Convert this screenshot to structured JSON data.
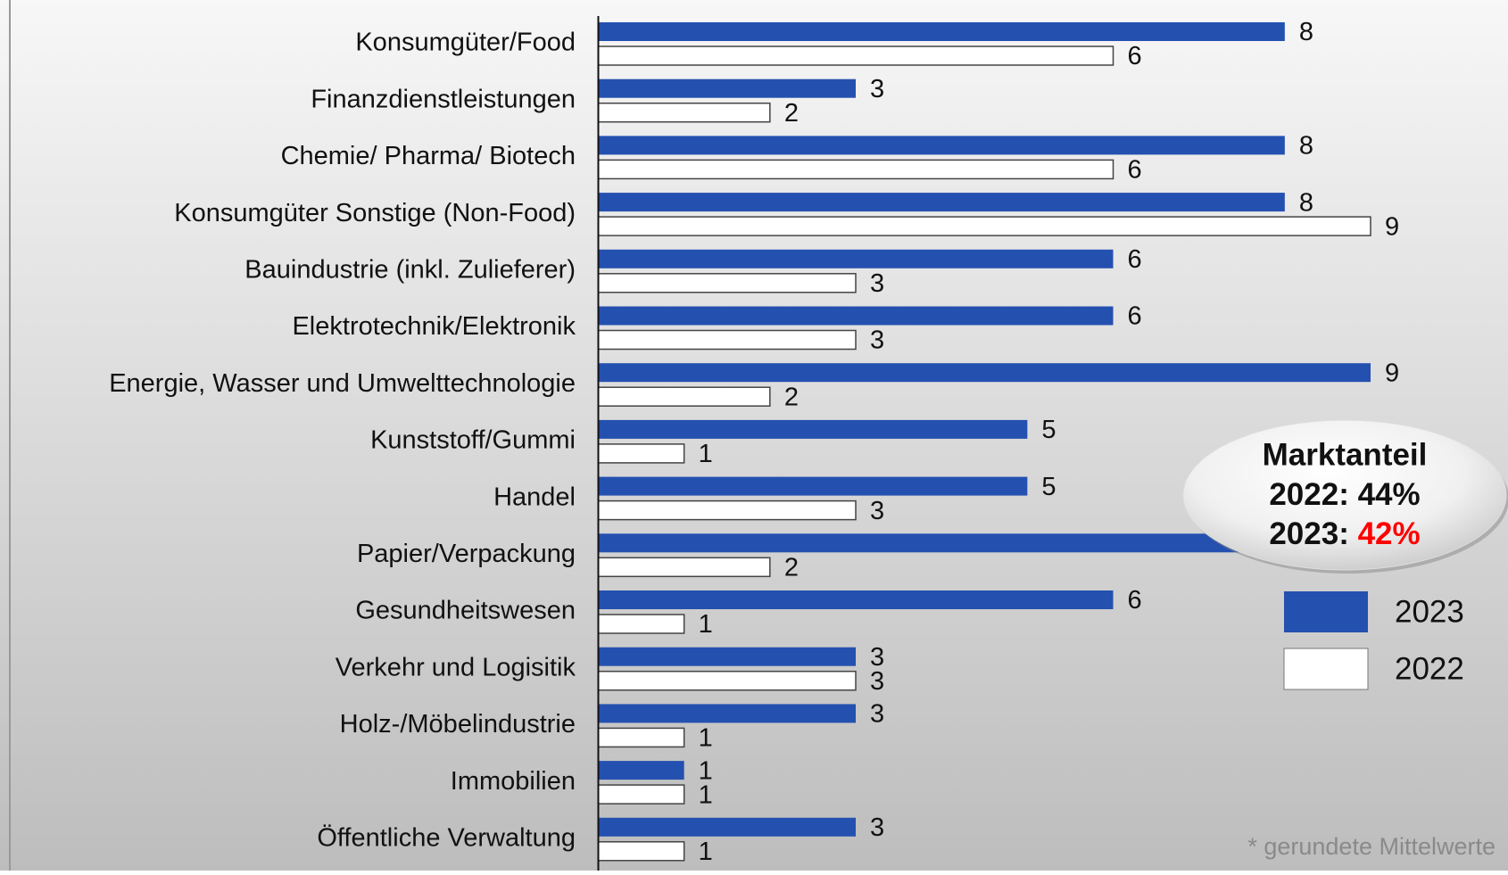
{
  "chart_data": {
    "type": "bar",
    "orientation": "horizontal",
    "categories": [
      "Konsumgüter/Food",
      "Finanzdienstleistungen",
      "Chemie/ Pharma/ Biotech",
      "Konsumgüter Sonstige (Non-Food)",
      "Bauindustrie (inkl. Zulieferer)",
      "Elektrotechnik/Elektronik",
      "Energie, Wasser und Umwelttechnologie",
      "Kunststoff/Gummi",
      "Handel",
      "Papier/Verpackung",
      "Gesundheitswesen",
      "Verkehr und Logisitik",
      "Holz-/Möbelindustrie",
      "Immobilien",
      "Öffentliche Verwaltung"
    ],
    "series": [
      {
        "name": "2023",
        "color": "#2450b0",
        "values": [
          8,
          3,
          8,
          8,
          6,
          6,
          9,
          5,
          5,
          8,
          6,
          3,
          3,
          1,
          3
        ]
      },
      {
        "name": "2022",
        "color": "#ffffff",
        "values": [
          6,
          2,
          6,
          9,
          3,
          3,
          2,
          1,
          3,
          2,
          1,
          3,
          1,
          1,
          1
        ]
      }
    ],
    "xlim": [
      0,
      9
    ],
    "legend": "right",
    "annotation": {
      "title": "Marktanteil",
      "lines": [
        {
          "label": "2022:",
          "value": "44%"
        },
        {
          "label": "2023:",
          "value": "42%"
        }
      ]
    },
    "footnote": "* gerundete Mittelwerte"
  }
}
